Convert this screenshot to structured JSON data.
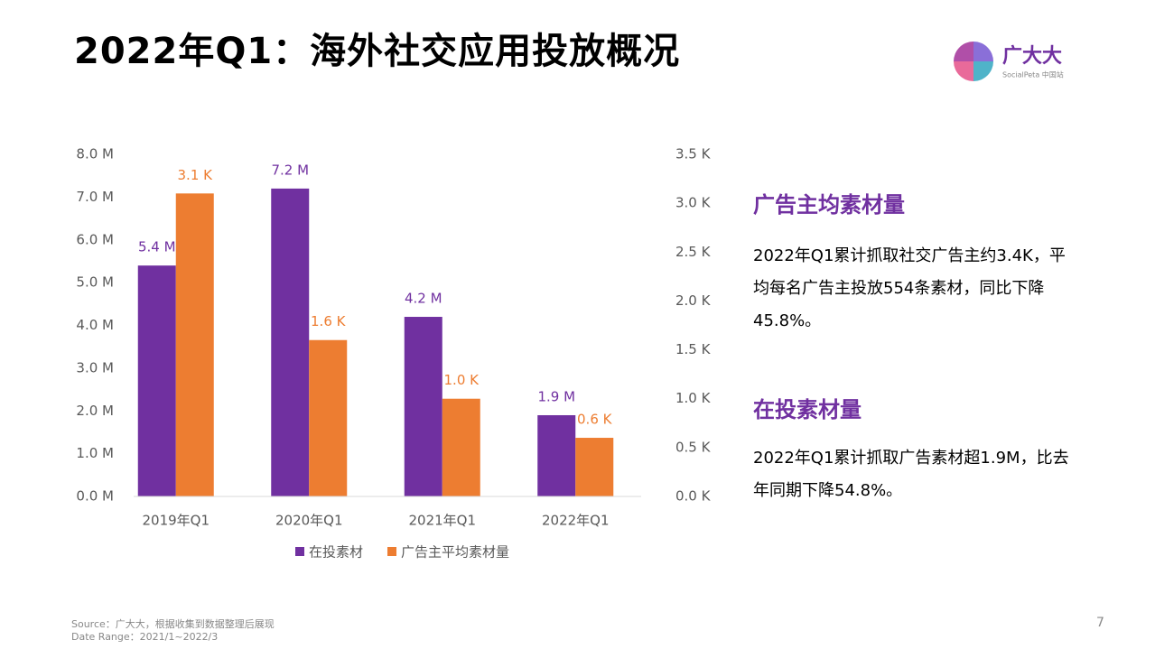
{
  "title": "2022年Q1：海外社交应用投放概况",
  "logo": {
    "name": "广大大",
    "subtitle": "SocialPeta 中国站"
  },
  "sections": [
    {
      "heading": "广告主均素材量",
      "body": "2022年Q1累计抓取社交广告主约3.4K，平均每名广告主投放554条素材，同比下降45.8%。"
    },
    {
      "heading": "在投素材量",
      "body": "2022年Q1累计抓取广告素材超1.9M，比去年同期下降54.8%。"
    }
  ],
  "footer": {
    "source": "Source：广大大，根据收集到数据整理后展现",
    "date_range": "Date Range：2021/1~2022/3"
  },
  "page_number": 7,
  "chart_data": {
    "type": "bar",
    "categories": [
      "2019年Q1",
      "2020年Q1",
      "2021年Q1",
      "2022年Q1"
    ],
    "series": [
      {
        "name": "在投素材",
        "color": "#7030a0",
        "values": [
          5.4,
          7.2,
          4.2,
          1.9
        ],
        "value_labels": [
          "5.4 M",
          "7.2 M",
          "4.2 M",
          "1.9 M"
        ]
      },
      {
        "name": "广告主平均素材量",
        "color": "#ed7d31",
        "axis": "y2",
        "values": [
          3.1,
          1.6,
          1.0,
          0.6
        ],
        "value_labels": [
          "3.1 K",
          "1.6 K",
          "1.0 K",
          "0.6 K"
        ]
      }
    ],
    "ylim": [
      0,
      8
    ],
    "yticks": [
      {
        "value": 0,
        "label": "0.0 M"
      },
      {
        "value": 1,
        "label": "1.0 M"
      },
      {
        "value": 2,
        "label": "2.0 M"
      },
      {
        "value": 3,
        "label": "3.0 M"
      },
      {
        "value": 4,
        "label": "4.0 M"
      },
      {
        "value": 5,
        "label": "5.0 M"
      },
      {
        "value": 6,
        "label": "6.0 M"
      },
      {
        "value": 7,
        "label": "7.0 M"
      },
      {
        "value": 8,
        "label": "8.0 M"
      }
    ],
    "y2lim": [
      0,
      3.5
    ],
    "y2ticks": [
      {
        "value": 0,
        "label": "0.0 K"
      },
      {
        "value": 0.5,
        "label": "0.5 K"
      },
      {
        "value": 1,
        "label": "1.0 K"
      },
      {
        "value": 1.5,
        "label": "1.5 K"
      },
      {
        "value": 2,
        "label": "2.0 K"
      },
      {
        "value": 2.5,
        "label": "2.5 K"
      },
      {
        "value": 3,
        "label": "3.0 K"
      },
      {
        "value": 3.5,
        "label": "3.5 K"
      }
    ],
    "grid": false,
    "legend": "bottom"
  }
}
